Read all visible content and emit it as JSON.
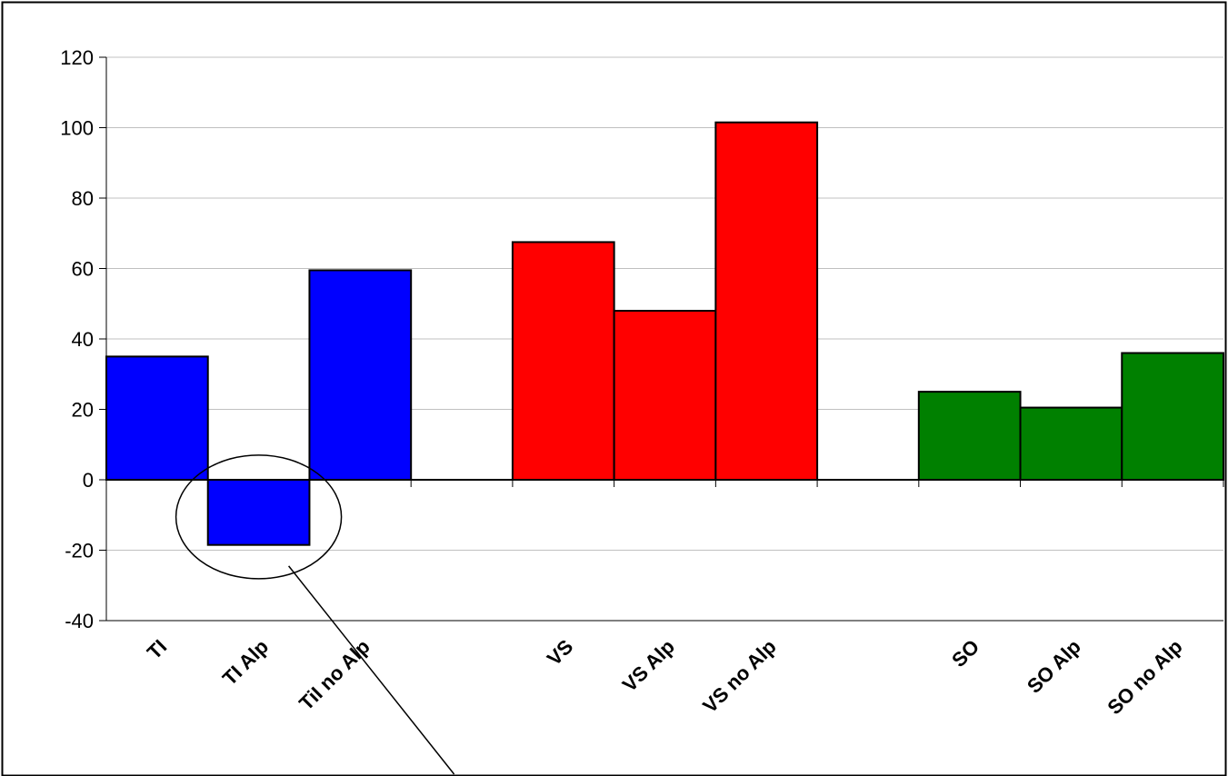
{
  "chart_data": {
    "type": "bar",
    "title": "",
    "xlabel": "",
    "ylabel": "",
    "ylim": [
      -40,
      120
    ],
    "yticks": [
      120,
      100,
      80,
      60,
      40,
      20,
      0,
      -20,
      -40
    ],
    "grid": true,
    "legend": "none",
    "categories": [
      "TI",
      "TI Alp",
      "TiI no Alp",
      "",
      "VS",
      "VS Alp",
      "VS no Alp",
      "",
      "SO",
      "SO Alp",
      "SO no Alp"
    ],
    "values": [
      35,
      -18.5,
      59.5,
      null,
      67.5,
      48,
      101.5,
      null,
      25,
      20.5,
      36
    ],
    "bar_colors": [
      "#0000ff",
      "#0000ff",
      "#0000ff",
      null,
      "#ff0000",
      "#ff0000",
      "#ff0000",
      null,
      "#008000",
      "#008000",
      "#008000"
    ],
    "annotation": {
      "type": "ellipse-callout",
      "target_category": "TI Alp"
    }
  }
}
